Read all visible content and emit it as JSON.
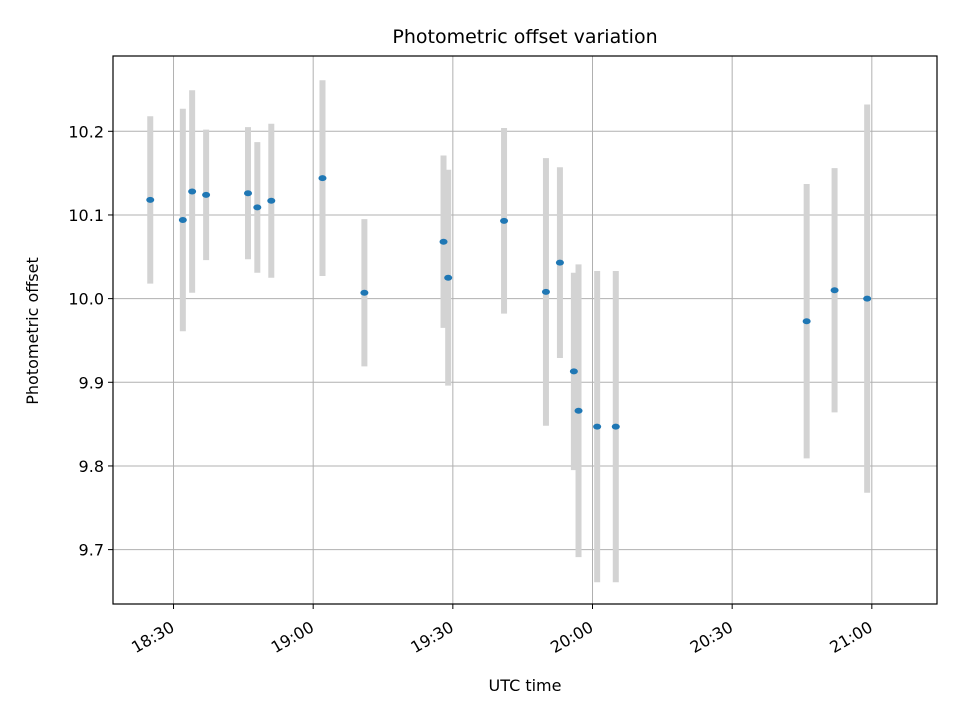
{
  "chart_data": {
    "type": "scatter",
    "title": "Photometric offset variation",
    "xlabel": "UTC time",
    "ylabel": "Photometric offset",
    "x_axis": "time",
    "xlim": [
      "18:17",
      "21:14"
    ],
    "ylim": [
      9.635,
      10.29
    ],
    "grid": true,
    "legend": "none",
    "x_ticks": [
      "18:30",
      "19:00",
      "19:30",
      "20:00",
      "20:30",
      "21:00"
    ],
    "y_ticks": [
      9.7,
      9.8,
      9.9,
      10.0,
      10.1,
      10.2
    ],
    "y_tick_labels": [
      "9.7",
      "9.8",
      "9.9",
      "10.0",
      "10.1",
      "10.2"
    ],
    "marker_color": "#1f77b4",
    "error_color": "#d3d3d3",
    "points": [
      {
        "time": "18:25",
        "y": 10.118,
        "err": 0.1
      },
      {
        "time": "18:32",
        "y": 10.094,
        "err": 0.133
      },
      {
        "time": "18:34",
        "y": 10.128,
        "err": 0.121
      },
      {
        "time": "18:37",
        "y": 10.124,
        "err": 0.078
      },
      {
        "time": "18:46",
        "y": 10.126,
        "err": 0.079
      },
      {
        "time": "18:48",
        "y": 10.109,
        "err": 0.078
      },
      {
        "time": "18:51",
        "y": 10.117,
        "err": 0.092
      },
      {
        "time": "19:02",
        "y": 10.144,
        "err": 0.117
      },
      {
        "time": "19:11",
        "y": 10.007,
        "err": 0.088
      },
      {
        "time": "19:28",
        "y": 10.068,
        "err": 0.103
      },
      {
        "time": "19:29",
        "y": 10.025,
        "err": 0.129
      },
      {
        "time": "19:41",
        "y": 10.093,
        "err": 0.111
      },
      {
        "time": "19:50",
        "y": 10.008,
        "err": 0.16
      },
      {
        "time": "19:53",
        "y": 10.043,
        "err": 0.114
      },
      {
        "time": "19:56",
        "y": 9.913,
        "err": 0.118
      },
      {
        "time": "19:57",
        "y": 9.866,
        "err": 0.175
      },
      {
        "time": "20:01",
        "y": 9.847,
        "err": 0.186
      },
      {
        "time": "20:05",
        "y": 9.847,
        "err": 0.186
      },
      {
        "time": "20:46",
        "y": 9.973,
        "err": 0.164
      },
      {
        "time": "20:52",
        "y": 10.01,
        "err": 0.146
      },
      {
        "time": "20:59",
        "y": 10.0,
        "err": 0.232
      }
    ]
  }
}
